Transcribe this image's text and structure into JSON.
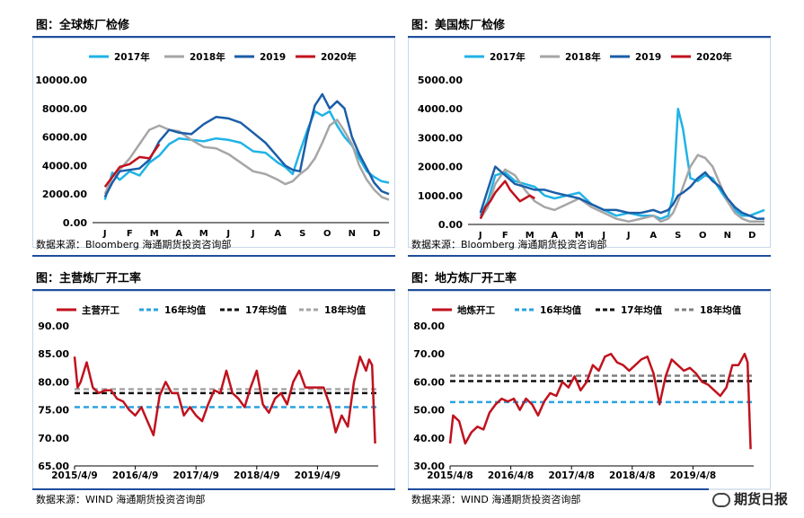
{
  "watermark": "期货日报",
  "chart_data": [
    {
      "id": "p1",
      "type": "line",
      "title": "图：全球炼厂检修",
      "source": "数据来源：Bloomberg    海通期货投资咨询部",
      "xcat": [
        "J",
        "F",
        "M",
        "A",
        "M",
        "J",
        "J",
        "A",
        "S",
        "O",
        "N",
        "D"
      ],
      "ylim": [
        0,
        10000
      ],
      "yticks": [
        0,
        2000,
        4000,
        6000,
        8000,
        10000
      ],
      "ytick_labels": [
        "0.00",
        "2000.00",
        "4000.00",
        "6000.00",
        "8000.00",
        "10000.00"
      ],
      "legend": [
        "2017年",
        "2018年",
        "2019",
        "2020年"
      ],
      "series": [
        {
          "name": "2017年",
          "color": "#1fb3e6",
          "x": [
            0,
            0.3,
            0.6,
            1.0,
            1.4,
            1.8,
            2.2,
            2.6,
            3.0,
            3.5,
            4.0,
            4.5,
            5.0,
            5.5,
            6.0,
            6.5,
            7.0,
            7.3,
            7.6,
            7.9,
            8.2,
            8.5,
            8.8,
            9.1,
            9.4,
            9.7,
            10.0,
            10.3,
            10.6,
            10.9,
            11.2,
            11.5
          ],
          "y": [
            1600,
            3500,
            3000,
            3600,
            3300,
            4200,
            4700,
            5500,
            5900,
            5800,
            5700,
            5900,
            5800,
            5600,
            5000,
            4900,
            4200,
            3900,
            3400,
            5000,
            6500,
            7800,
            7500,
            7800,
            6800,
            6000,
            5400,
            4500,
            3600,
            3200,
            2900,
            2800
          ]
        },
        {
          "name": "2018年",
          "color": "#a6a6a6",
          "x": [
            0,
            0.3,
            0.6,
            1.0,
            1.4,
            1.8,
            2.2,
            2.6,
            3.0,
            3.5,
            4.0,
            4.5,
            5.0,
            5.5,
            6.0,
            6.5,
            7.0,
            7.3,
            7.6,
            7.9,
            8.2,
            8.5,
            8.8,
            9.1,
            9.4,
            9.7,
            10.0,
            10.3,
            10.6,
            10.9,
            11.2,
            11.5
          ],
          "y": [
            2000,
            3200,
            3700,
            4500,
            5500,
            6500,
            6800,
            6500,
            6400,
            5800,
            5300,
            5200,
            4800,
            4200,
            3600,
            3400,
            3000,
            2700,
            2900,
            3400,
            3800,
            4500,
            5600,
            6800,
            7200,
            6400,
            5500,
            4000,
            3000,
            2300,
            1800,
            1600
          ]
        },
        {
          "name": "2019",
          "color": "#1b5ea8",
          "x": [
            0,
            0.3,
            0.6,
            1.0,
            1.4,
            1.8,
            2.2,
            2.6,
            3.0,
            3.5,
            4.0,
            4.5,
            5.0,
            5.5,
            6.0,
            6.5,
            7.0,
            7.3,
            7.6,
            7.9,
            8.2,
            8.5,
            8.8,
            9.1,
            9.4,
            9.7,
            10.0,
            10.3,
            10.6,
            10.9,
            11.2,
            11.5
          ],
          "y": [
            1800,
            2800,
            3600,
            3700,
            3800,
            4400,
            5700,
            6500,
            6300,
            6200,
            6900,
            7400,
            7300,
            7000,
            6300,
            5600,
            4600,
            4000,
            3700,
            3600,
            6200,
            8200,
            9000,
            8000,
            8500,
            8000,
            6000,
            4800,
            3800,
            2800,
            2200,
            2000
          ]
        },
        {
          "name": "2020年",
          "color": "#c0121e",
          "x": [
            0,
            0.3,
            0.6,
            1.0,
            1.4,
            1.8,
            2.2
          ],
          "y": [
            2500,
            3200,
            3900,
            4100,
            4600,
            4500,
            5500
          ]
        }
      ]
    },
    {
      "id": "p2",
      "type": "line",
      "title": "图：美国炼厂检修",
      "source": "数据来源：Bloomberg    海通期货投资咨询部",
      "xcat": [
        "J",
        "F",
        "M",
        "A",
        "M",
        "J",
        "J",
        "A",
        "S",
        "O",
        "N",
        "D"
      ],
      "ylim": [
        0,
        5000
      ],
      "yticks": [
        0,
        1000,
        2000,
        3000,
        4000,
        5000
      ],
      "ytick_labels": [
        "0.00",
        "1000.00",
        "2000.00",
        "3000.00",
        "4000.00",
        "5000.00"
      ],
      "legend": [
        "2017年",
        "2018年",
        "2019",
        "2020年"
      ],
      "series": [
        {
          "name": "2017年",
          "color": "#1fb3e6",
          "x": [
            0,
            0.3,
            0.6,
            1.0,
            1.4,
            1.8,
            2.2,
            2.6,
            3.0,
            3.5,
            4.0,
            4.5,
            5.0,
            5.5,
            6.0,
            6.5,
            7.0,
            7.3,
            7.6,
            7.8,
            8.0,
            8.2,
            8.5,
            8.8,
            9.1,
            9.4,
            9.7,
            10.0,
            10.3,
            10.6,
            10.9,
            11.2,
            11.5
          ],
          "y": [
            300,
            800,
            1700,
            1800,
            1500,
            1400,
            1300,
            1000,
            900,
            1000,
            1100,
            700,
            500,
            300,
            400,
            300,
            300,
            200,
            300,
            1000,
            4000,
            3300,
            1600,
            1500,
            1700,
            1600,
            1200,
            800,
            500,
            300,
            300,
            400,
            500
          ]
        },
        {
          "name": "2018年",
          "color": "#a6a6a6",
          "x": [
            0,
            0.3,
            0.6,
            1.0,
            1.4,
            1.8,
            2.2,
            2.6,
            3.0,
            3.5,
            4.0,
            4.5,
            5.0,
            5.5,
            6.0,
            6.5,
            7.0,
            7.3,
            7.6,
            7.8,
            8.0,
            8.2,
            8.5,
            8.8,
            9.1,
            9.4,
            9.7,
            10.0,
            10.3,
            10.6,
            10.9,
            11.2,
            11.5
          ],
          "y": [
            200,
            600,
            1400,
            1900,
            1700,
            1200,
            800,
            600,
            500,
            700,
            900,
            600,
            400,
            200,
            100,
            200,
            300,
            100,
            200,
            400,
            800,
            1300,
            2000,
            2400,
            2300,
            2000,
            1400,
            800,
            400,
            200,
            100,
            100,
            100
          ]
        },
        {
          "name": "2019",
          "color": "#1b5ea8",
          "x": [
            0,
            0.3,
            0.6,
            1.0,
            1.4,
            1.8,
            2.2,
            2.6,
            3.0,
            3.5,
            4.0,
            4.5,
            5.0,
            5.5,
            6.0,
            6.5,
            7.0,
            7.3,
            7.6,
            7.8,
            8.0,
            8.2,
            8.5,
            8.8,
            9.1,
            9.4,
            9.7,
            10.0,
            10.3,
            10.6,
            10.9,
            11.2,
            11.5
          ],
          "y": [
            400,
            1200,
            2000,
            1700,
            1400,
            1300,
            1200,
            1200,
            1100,
            1000,
            900,
            700,
            500,
            500,
            400,
            400,
            500,
            400,
            500,
            700,
            1000,
            1100,
            1300,
            1600,
            1800,
            1500,
            1300,
            900,
            600,
            400,
            300,
            200,
            200
          ]
        },
        {
          "name": "2020年",
          "color": "#c0121e",
          "x": [
            0,
            0.2,
            0.4,
            0.6,
            0.8,
            1.0,
            1.2,
            1.4,
            1.6,
            1.8,
            2.0,
            2.2
          ],
          "y": [
            200,
            600,
            800,
            1100,
            1300,
            1500,
            1200,
            1000,
            800,
            900,
            1000,
            900
          ]
        }
      ]
    },
    {
      "id": "p3",
      "type": "line",
      "title": "图：主营炼厂开工率",
      "source": "数据来源：WIND    海通期货投资咨询部",
      "xtick_labels": [
        "2015/4/9",
        "2016/4/9",
        "2017/4/9",
        "2018/4/9",
        "2019/4/9"
      ],
      "xtick_pos": [
        0,
        1,
        2,
        3,
        4
      ],
      "xlim": [
        0,
        5.0
      ],
      "ylim": [
        65,
        90
      ],
      "yticks": [
        65,
        70,
        75,
        80,
        85,
        90
      ],
      "ytick_labels": [
        "65.00",
        "70.00",
        "75.00",
        "80.00",
        "85.00",
        "90.00"
      ],
      "legend": [
        "主营开工",
        "16年均值",
        "17年均值",
        "18年均值"
      ],
      "hlines": [
        {
          "name": "16年均值",
          "value": 75.5,
          "color": "#2aa3e0"
        },
        {
          "name": "17年均值",
          "value": 78.0,
          "color": "#111111"
        },
        {
          "name": "18年均值",
          "value": 78.7,
          "color": "#a6a6a6"
        }
      ],
      "series": [
        {
          "name": "主营开工",
          "color": "#c0121e",
          "x": [
            0,
            0.05,
            0.1,
            0.2,
            0.3,
            0.4,
            0.5,
            0.6,
            0.7,
            0.8,
            0.9,
            1.0,
            1.1,
            1.2,
            1.3,
            1.4,
            1.5,
            1.6,
            1.7,
            1.8,
            1.9,
            2.0,
            2.1,
            2.2,
            2.3,
            2.4,
            2.5,
            2.6,
            2.7,
            2.8,
            2.9,
            3.0,
            3.1,
            3.2,
            3.3,
            3.4,
            3.5,
            3.6,
            3.7,
            3.8,
            3.9,
            4.0,
            4.1,
            4.2,
            4.3,
            4.4,
            4.5,
            4.6,
            4.7,
            4.8,
            4.85,
            4.9,
            4.95
          ],
          "y": [
            84.5,
            79,
            80,
            83.5,
            79,
            78,
            78.5,
            78.5,
            77,
            76.5,
            75,
            74,
            75.5,
            73,
            70.5,
            77.5,
            80,
            78,
            78,
            74,
            75.5,
            74,
            73,
            76,
            78.5,
            78,
            82,
            78,
            77,
            75.5,
            79,
            82,
            76,
            74.5,
            77,
            78,
            76,
            80,
            82,
            79,
            79,
            79,
            79,
            76,
            71,
            74,
            72,
            80,
            84.5,
            82,
            84,
            83,
            69
          ]
        }
      ]
    },
    {
      "id": "p4",
      "type": "line",
      "title": "图：地方炼厂开工率",
      "source": "数据来源：WIND    海通期货投资咨询部",
      "xtick_labels": [
        "2015/4/8",
        "2016/4/8",
        "2017/4/8",
        "2018/4/8",
        "2019/4/8"
      ],
      "xtick_pos": [
        0,
        1,
        2,
        3,
        4
      ],
      "xlim": [
        0,
        5.0
      ],
      "ylim": [
        30,
        80
      ],
      "yticks": [
        30,
        40,
        50,
        60,
        70,
        80
      ],
      "ytick_labels": [
        "30.00",
        "40.00",
        "50.00",
        "60.00",
        "70.00",
        "80.00"
      ],
      "legend": [
        "地炼开工",
        "16年均值",
        "17年均值",
        "18年均值"
      ],
      "hlines": [
        {
          "name": "16年均值",
          "value": 52.8,
          "color": "#2aa3e0"
        },
        {
          "name": "17年均值",
          "value": 60.3,
          "color": "#111111"
        },
        {
          "name": "18年均值",
          "value": 62.2,
          "color": "#7f7f7f"
        }
      ],
      "series": [
        {
          "name": "地炼开工",
          "color": "#c0121e",
          "x": [
            0,
            0.05,
            0.15,
            0.25,
            0.35,
            0.45,
            0.55,
            0.65,
            0.75,
            0.85,
            0.95,
            1.05,
            1.15,
            1.25,
            1.35,
            1.45,
            1.55,
            1.65,
            1.75,
            1.85,
            1.95,
            2.05,
            2.15,
            2.25,
            2.35,
            2.45,
            2.55,
            2.65,
            2.75,
            2.85,
            2.95,
            3.05,
            3.15,
            3.25,
            3.35,
            3.45,
            3.55,
            3.65,
            3.75,
            3.85,
            3.95,
            4.05,
            4.15,
            4.25,
            4.35,
            4.45,
            4.55,
            4.65,
            4.75,
            4.85,
            4.9,
            4.95
          ],
          "y": [
            38,
            48,
            46,
            38,
            42,
            44,
            43,
            49,
            52,
            54,
            53,
            54,
            50,
            54,
            52,
            48,
            53,
            56,
            55,
            60,
            58,
            62,
            57,
            60,
            66,
            64,
            69,
            70,
            67,
            66,
            64,
            66,
            68,
            69,
            63,
            52,
            62,
            68,
            66,
            64,
            65,
            63,
            60,
            59,
            57,
            55,
            58,
            66,
            66,
            70,
            67,
            36
          ]
        }
      ]
    }
  ]
}
